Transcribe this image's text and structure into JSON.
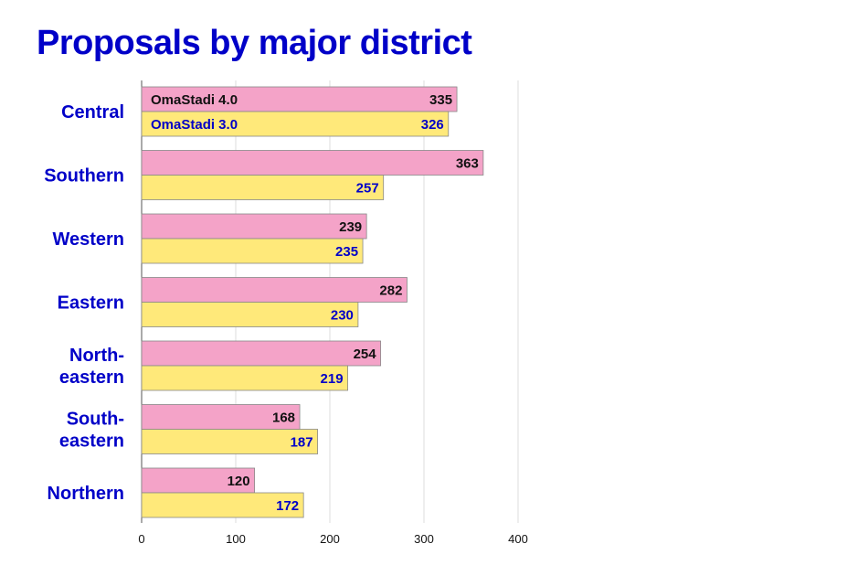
{
  "chart_data": {
    "type": "bar",
    "orientation": "horizontal",
    "title": "Proposals by major district",
    "categories": [
      "Central",
      "Southern",
      "Western",
      "Eastern",
      "North-eastern",
      "South-eastern",
      "Northern"
    ],
    "category_lines": [
      [
        "Central"
      ],
      [
        "Southern"
      ],
      [
        "Western"
      ],
      [
        "Eastern"
      ],
      [
        "North-",
        "eastern"
      ],
      [
        "South-",
        "eastern"
      ],
      [
        "Northern"
      ]
    ],
    "series": [
      {
        "name": "OmaStadi 4.0",
        "values": [
          335,
          363,
          239,
          282,
          254,
          168,
          120
        ],
        "color": "#f4a3c8",
        "label_color": "#111111"
      },
      {
        "name": "OmaStadi 3.0",
        "values": [
          326,
          257,
          235,
          230,
          219,
          187,
          172
        ],
        "color": "#ffe97a",
        "label_color": "#0000c8"
      }
    ],
    "xlim": [
      0,
      400
    ],
    "xticks": [
      0,
      100,
      200,
      300,
      400
    ],
    "grid": true,
    "legend": "inside first bars",
    "accent_color": "#0000c8"
  }
}
